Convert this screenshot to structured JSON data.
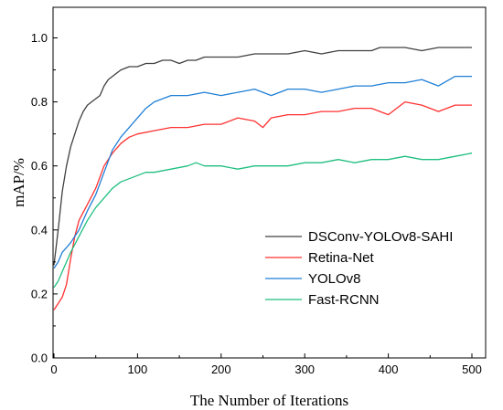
{
  "chart_data": {
    "type": "line",
    "xlabel": "The Number of Iterations",
    "ylabel": "mAP/%",
    "xlim": [
      0,
      510
    ],
    "ylim": [
      0,
      1.1
    ],
    "xticks": [
      "0",
      "100",
      "200",
      "300",
      "400",
      "500"
    ],
    "yticks": [
      "0.0",
      "0.2",
      "0.4",
      "0.6",
      "0.8",
      "1.0"
    ],
    "legend_position": "center-right",
    "grid": false,
    "series": [
      {
        "name": "DSConv-YOLOv8-SAHI",
        "color": "#404040",
        "x": [
          0,
          5,
          10,
          15,
          20,
          25,
          30,
          35,
          40,
          45,
          50,
          55,
          60,
          65,
          70,
          75,
          80,
          90,
          100,
          110,
          120,
          130,
          140,
          150,
          160,
          170,
          180,
          200,
          220,
          240,
          260,
          280,
          300,
          320,
          340,
          360,
          380,
          390,
          400,
          420,
          440,
          460,
          480,
          500
        ],
        "values": [
          0.29,
          0.4,
          0.52,
          0.6,
          0.66,
          0.7,
          0.74,
          0.77,
          0.79,
          0.8,
          0.81,
          0.82,
          0.85,
          0.87,
          0.88,
          0.89,
          0.9,
          0.91,
          0.91,
          0.92,
          0.92,
          0.93,
          0.93,
          0.92,
          0.93,
          0.93,
          0.94,
          0.94,
          0.94,
          0.95,
          0.95,
          0.95,
          0.96,
          0.95,
          0.96,
          0.96,
          0.96,
          0.97,
          0.97,
          0.97,
          0.96,
          0.97,
          0.97,
          0.97
        ]
      },
      {
        "name": "Retina-Net",
        "color": "#ff3030",
        "x": [
          0,
          5,
          10,
          15,
          20,
          25,
          30,
          40,
          50,
          60,
          70,
          80,
          90,
          100,
          120,
          140,
          160,
          180,
          200,
          220,
          240,
          250,
          260,
          280,
          300,
          320,
          340,
          360,
          380,
          400,
          410,
          420,
          440,
          460,
          480,
          500
        ],
        "values": [
          0.15,
          0.17,
          0.19,
          0.23,
          0.31,
          0.38,
          0.43,
          0.48,
          0.53,
          0.6,
          0.64,
          0.67,
          0.69,
          0.7,
          0.71,
          0.72,
          0.72,
          0.73,
          0.73,
          0.75,
          0.74,
          0.72,
          0.75,
          0.76,
          0.76,
          0.77,
          0.77,
          0.78,
          0.78,
          0.76,
          0.78,
          0.8,
          0.79,
          0.77,
          0.79,
          0.79
        ]
      },
      {
        "name": "YOLOv8",
        "color": "#1f7fd6",
        "x": [
          0,
          5,
          10,
          20,
          30,
          40,
          50,
          60,
          70,
          80,
          90,
          100,
          110,
          120,
          130,
          140,
          150,
          160,
          180,
          200,
          220,
          240,
          260,
          280,
          300,
          320,
          340,
          360,
          380,
          400,
          420,
          440,
          460,
          480,
          500
        ],
        "values": [
          0.28,
          0.3,
          0.33,
          0.36,
          0.4,
          0.46,
          0.51,
          0.58,
          0.65,
          0.69,
          0.72,
          0.75,
          0.78,
          0.8,
          0.81,
          0.82,
          0.82,
          0.82,
          0.83,
          0.82,
          0.83,
          0.84,
          0.82,
          0.84,
          0.84,
          0.83,
          0.84,
          0.85,
          0.85,
          0.86,
          0.86,
          0.87,
          0.85,
          0.88,
          0.88
        ]
      },
      {
        "name": "Fast-RCNN",
        "color": "#1fbf7f",
        "x": [
          0,
          5,
          10,
          20,
          30,
          40,
          50,
          60,
          70,
          80,
          90,
          100,
          110,
          120,
          140,
          160,
          170,
          180,
          200,
          220,
          240,
          260,
          280,
          300,
          320,
          340,
          360,
          380,
          400,
          420,
          440,
          460,
          480,
          500
        ],
        "values": [
          0.22,
          0.24,
          0.27,
          0.33,
          0.38,
          0.43,
          0.47,
          0.5,
          0.53,
          0.55,
          0.56,
          0.57,
          0.58,
          0.58,
          0.59,
          0.6,
          0.61,
          0.6,
          0.6,
          0.59,
          0.6,
          0.6,
          0.6,
          0.61,
          0.61,
          0.62,
          0.61,
          0.62,
          0.62,
          0.63,
          0.62,
          0.62,
          0.63,
          0.64
        ]
      }
    ]
  }
}
